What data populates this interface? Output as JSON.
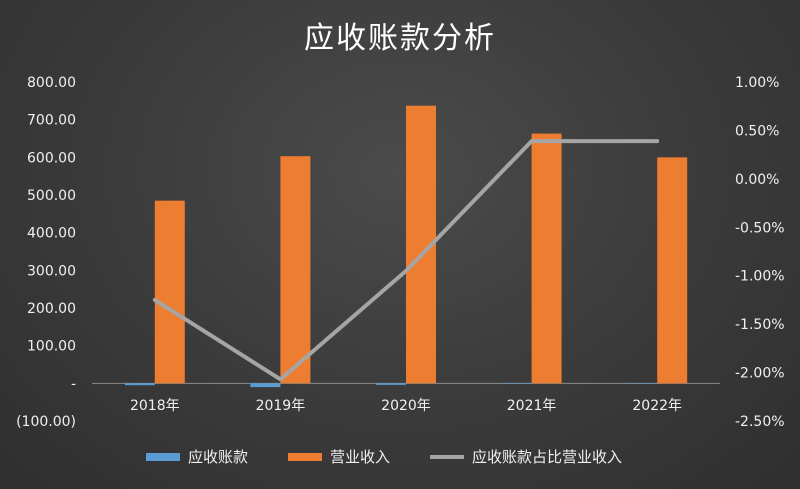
{
  "chart_data": {
    "type": "bar",
    "title": "应收账款分析",
    "categories": [
      "2018年",
      "2019年",
      "2020年",
      "2021年",
      "2022年"
    ],
    "series": [
      {
        "name": "应收账款",
        "kind": "bar",
        "axis": "left",
        "color": "#5b9bd5",
        "values": [
          -5,
          -10,
          -4,
          0,
          0
        ]
      },
      {
        "name": "营业收入",
        "kind": "bar",
        "axis": "left",
        "color": "#ed7d31",
        "values": [
          485,
          603,
          737,
          663,
          600
        ]
      },
      {
        "name": "应收账款占比营业收入",
        "kind": "line",
        "axis": "right",
        "color": "#a5a5a5",
        "values": [
          -1.25,
          -2.07,
          -0.95,
          0.39,
          0.39
        ]
      }
    ],
    "y_left": {
      "lim": [
        -100,
        800
      ],
      "ticks": [
        800,
        700,
        600,
        500,
        400,
        300,
        200,
        100,
        0,
        -100
      ],
      "tick_labels": [
        "800.00",
        "700.00",
        "600.00",
        "500.00",
        "400.00",
        "300.00",
        "200.00",
        "100.00",
        "-",
        "(100.00)"
      ]
    },
    "y_right": {
      "lim": [
        -2.5,
        1.0
      ],
      "ticks": [
        1.0,
        0.5,
        0.0,
        -0.5,
        -1.0,
        -1.5,
        -2.0,
        -2.5
      ],
      "tick_labels": [
        "1.00%",
        "0.50%",
        "0.00%",
        "-0.50%",
        "-1.00%",
        "-1.50%",
        "-2.00%",
        "-2.50%"
      ]
    },
    "grid": false,
    "legend_position": "bottom"
  }
}
